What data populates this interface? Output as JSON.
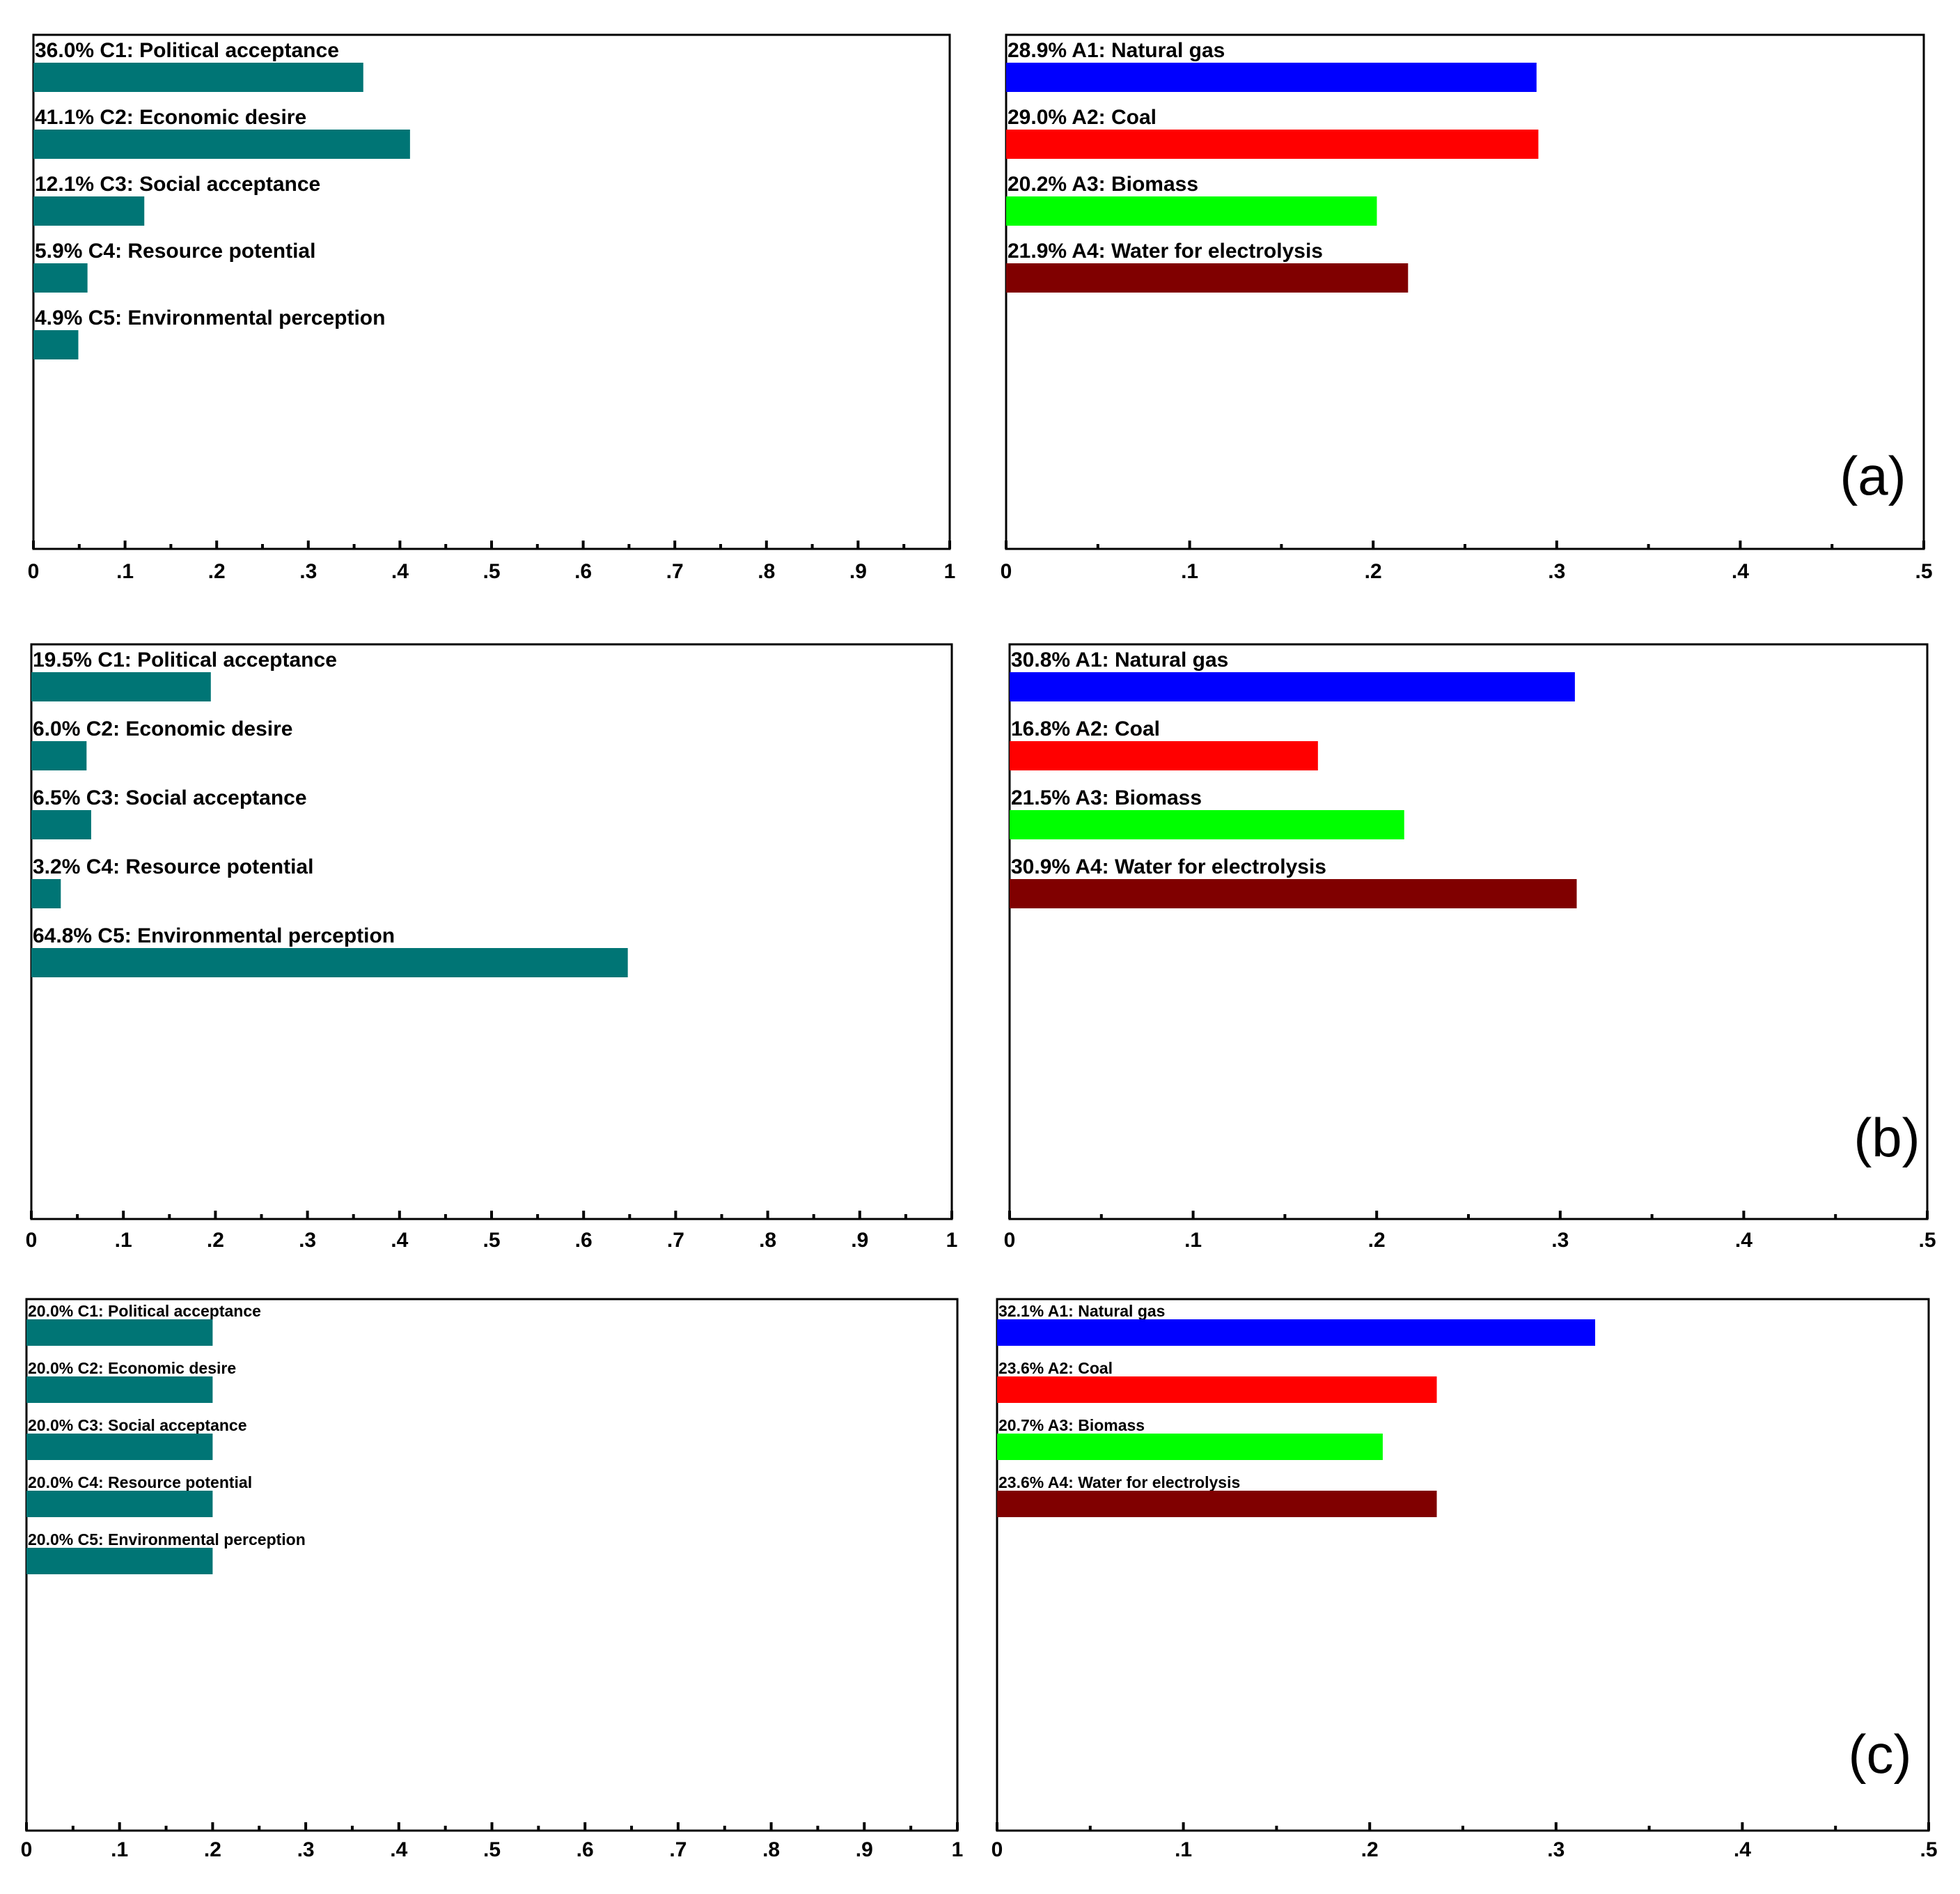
{
  "colors": {
    "criteria_bar": "#007575",
    "natural_gas": "#0000ff",
    "coal": "#ff0000",
    "biomass": "#00ff00",
    "water_electrolysis": "#800000",
    "frame": "#000000"
  },
  "panels": [
    {
      "label": "(a)"
    },
    {
      "label": "(b)"
    },
    {
      "label": "(c)"
    }
  ],
  "chart_data": [
    {
      "type": "bar",
      "panel": "(a)",
      "side": "criteria",
      "orientation": "horizontal",
      "categories": [
        "C1: Political acceptance",
        "C2: Economic desire",
        "C3: Social acceptance",
        "C4: Resource potential",
        "C5: Environmental perception"
      ],
      "labels": [
        "36.0% C1: Political acceptance",
        "41.1% C2: Economic desire",
        "12.1% C3: Social acceptance",
        "5.9% C4: Resource potential",
        "4.9% C5: Environmental perception"
      ],
      "values": [
        0.36,
        0.411,
        0.121,
        0.059,
        0.049
      ],
      "xlim": [
        0,
        1
      ],
      "xticks": [
        "0",
        ".1",
        ".2",
        ".3",
        ".4",
        ".5",
        ".6",
        ".7",
        ".8",
        ".9",
        "1"
      ],
      "colors": [
        "#007575",
        "#007575",
        "#007575",
        "#007575",
        "#007575"
      ]
    },
    {
      "type": "bar",
      "panel": "(a)",
      "side": "alternatives",
      "orientation": "horizontal",
      "categories": [
        "A1: Natural gas",
        "A2: Coal",
        "A3: Biomass",
        "A4: Water for electrolysis"
      ],
      "labels": [
        "28.9% A1: Natural gas",
        "29.0% A2: Coal",
        "20.2% A3: Biomass",
        "21.9% A4: Water for electrolysis"
      ],
      "values": [
        0.289,
        0.29,
        0.202,
        0.219
      ],
      "xlim": [
        0,
        0.5
      ],
      "xticks": [
        "0",
        ".1",
        ".2",
        ".3",
        ".4",
        ".5"
      ],
      "colors": [
        "#0000ff",
        "#ff0000",
        "#00ff00",
        "#800000"
      ]
    },
    {
      "type": "bar",
      "panel": "(b)",
      "side": "criteria",
      "orientation": "horizontal",
      "categories": [
        "C1: Political acceptance",
        "C2: Economic desire",
        "C3: Social acceptance",
        "C4: Resource potential",
        "C5: Environmental perception"
      ],
      "labels": [
        "19.5% C1: Political acceptance",
        "6.0% C2: Economic desire",
        "6.5% C3: Social acceptance",
        "3.2% C4: Resource potential",
        "64.8% C5: Environmental perception"
      ],
      "values": [
        0.195,
        0.06,
        0.065,
        0.032,
        0.648
      ],
      "xlim": [
        0,
        1
      ],
      "xticks": [
        "0",
        ".1",
        ".2",
        ".3",
        ".4",
        ".5",
        ".6",
        ".7",
        ".8",
        ".9",
        "1"
      ],
      "colors": [
        "#007575",
        "#007575",
        "#007575",
        "#007575",
        "#007575"
      ]
    },
    {
      "type": "bar",
      "panel": "(b)",
      "side": "alternatives",
      "orientation": "horizontal",
      "categories": [
        "A1: Natural gas",
        "A2: Coal",
        "A3: Biomass",
        "A4: Water for electrolysis"
      ],
      "labels": [
        "30.8% A1: Natural gas",
        "16.8% A2: Coal",
        "21.5% A3: Biomass",
        "30.9% A4: Water for electrolysis"
      ],
      "values": [
        0.308,
        0.168,
        0.215,
        0.309
      ],
      "xlim": [
        0,
        0.5
      ],
      "xticks": [
        "0",
        ".1",
        ".2",
        ".3",
        ".4",
        ".5"
      ],
      "colors": [
        "#0000ff",
        "#ff0000",
        "#00ff00",
        "#800000"
      ]
    },
    {
      "type": "bar",
      "panel": "(c)",
      "side": "criteria",
      "orientation": "horizontal",
      "categories": [
        "C1: Political acceptance",
        "C2: Economic desire",
        "C3: Social acceptance",
        "C4: Resource potential",
        "C5: Environmental perception"
      ],
      "labels": [
        "20.0% C1: Political acceptance",
        "20.0% C2: Economic desire",
        "20.0% C3: Social acceptance",
        "20.0% C4: Resource potential",
        "20.0% C5: Environmental perception"
      ],
      "values": [
        0.2,
        0.2,
        0.2,
        0.2,
        0.2
      ],
      "xlim": [
        0,
        1
      ],
      "xticks": [
        "0",
        ".1",
        ".2",
        ".3",
        ".4",
        ".5",
        ".6",
        ".7",
        ".8",
        ".9",
        "1"
      ],
      "colors": [
        "#007575",
        "#007575",
        "#007575",
        "#007575",
        "#007575"
      ]
    },
    {
      "type": "bar",
      "panel": "(c)",
      "side": "alternatives",
      "orientation": "horizontal",
      "categories": [
        "A1: Natural gas",
        "A2: Coal",
        "A3: Biomass",
        "A4: Water for electrolysis"
      ],
      "labels": [
        "32.1% A1: Natural gas",
        "23.6% A2: Coal",
        "20.7% A3: Biomass",
        "23.6% A4: Water for electrolysis"
      ],
      "values": [
        0.321,
        0.236,
        0.207,
        0.236
      ],
      "xlim": [
        0,
        0.5
      ],
      "xticks": [
        "0",
        ".1",
        ".2",
        ".3",
        ".4",
        ".5"
      ],
      "colors": [
        "#0000ff",
        "#ff0000",
        "#00ff00",
        "#800000"
      ]
    }
  ]
}
